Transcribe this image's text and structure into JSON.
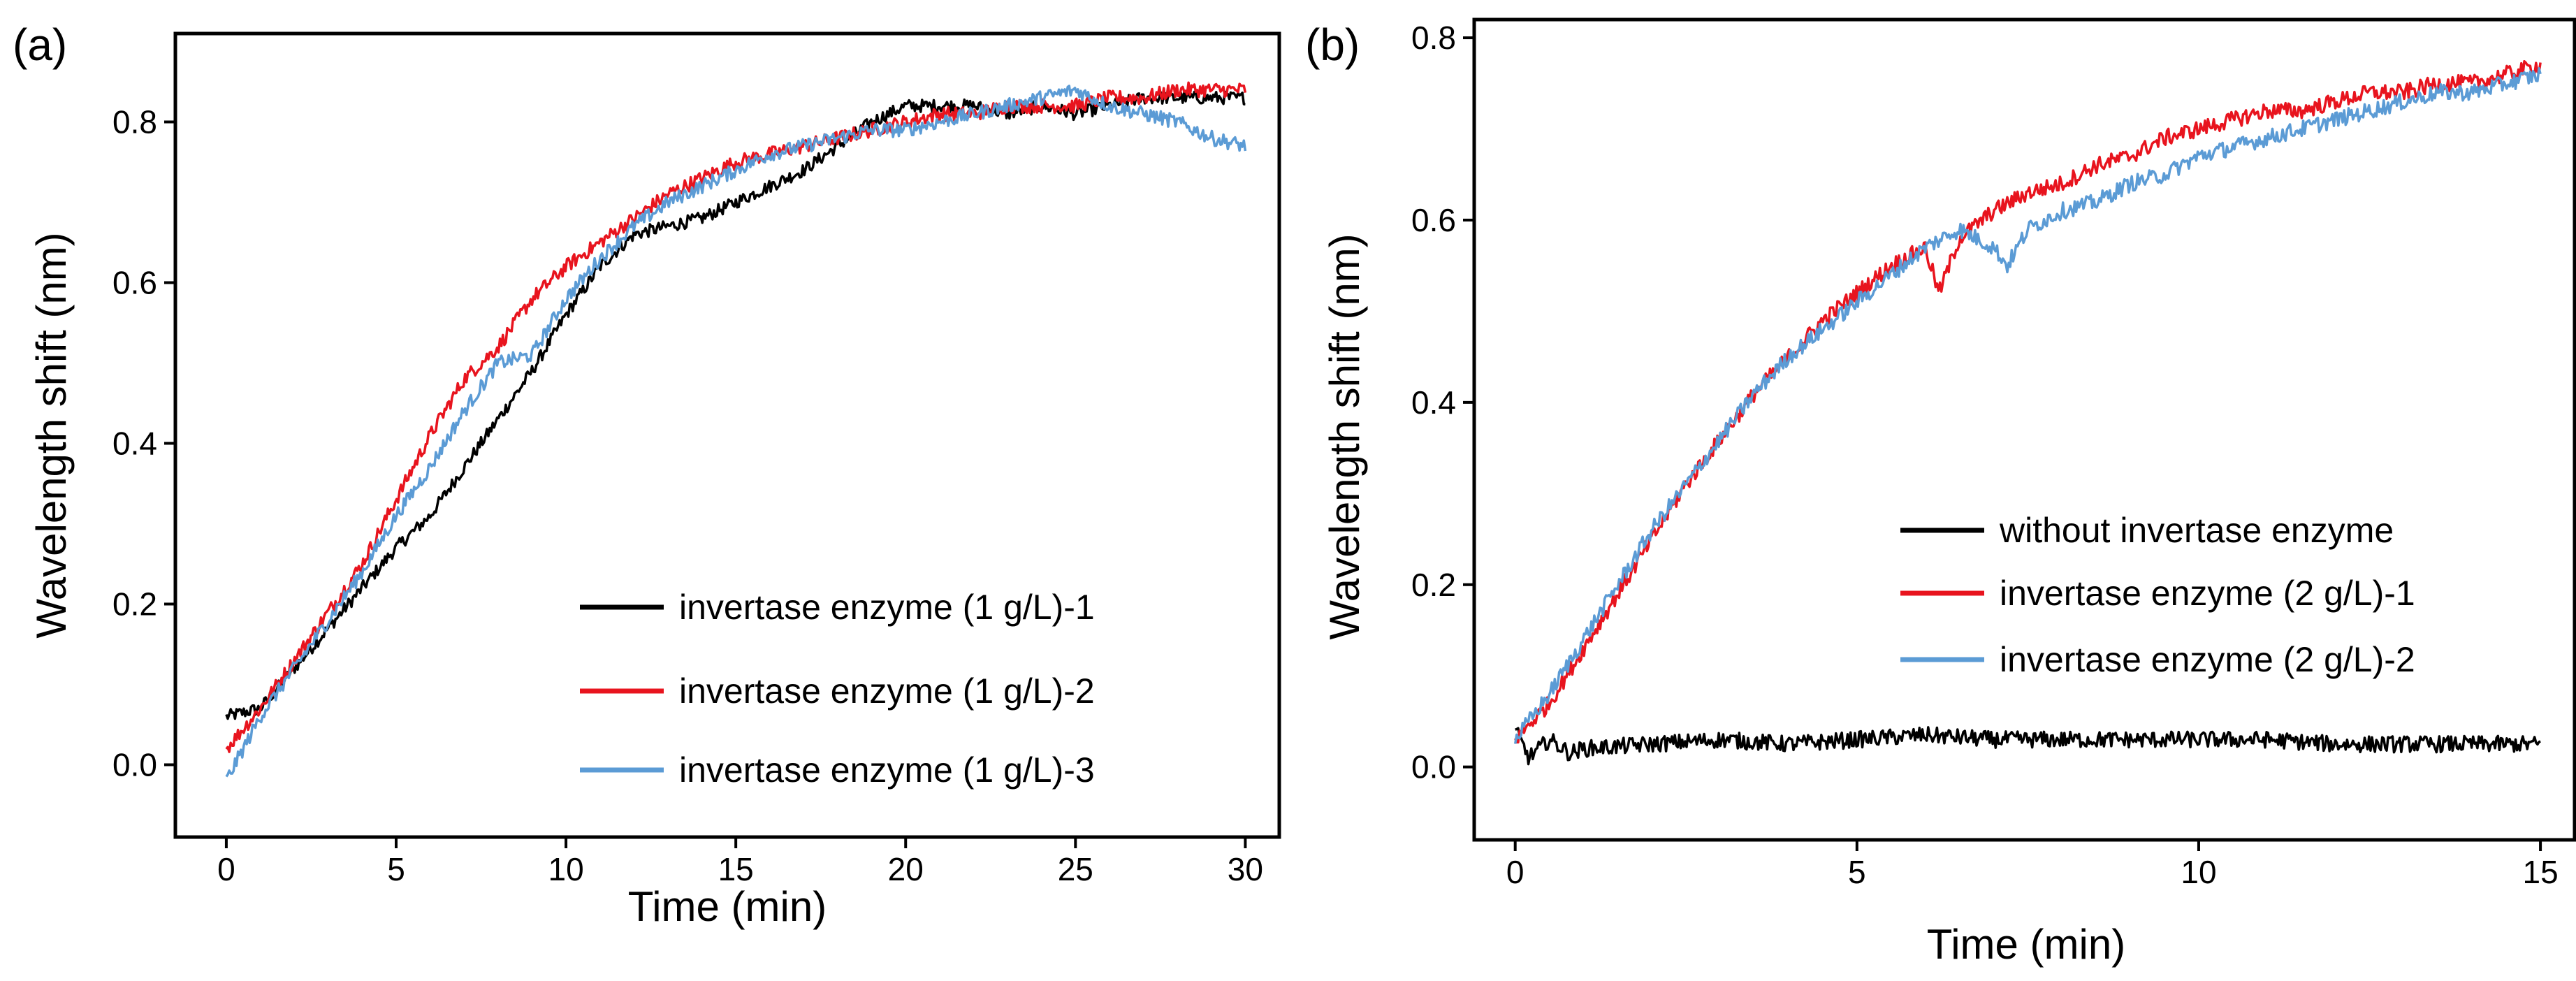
{
  "chart_data": [
    {
      "type": "line",
      "panel_label": "(a)",
      "xlabel": "Time (min)",
      "ylabel": "Wavelength shift (nm)",
      "xlim": [
        -1.5,
        31
      ],
      "ylim": [
        -0.09,
        0.91
      ],
      "xticks": [
        0,
        5,
        10,
        15,
        20,
        25,
        30
      ],
      "xtick_labels": [
        "0",
        "5",
        "10",
        "15",
        "20",
        "25",
        "30"
      ],
      "yticks": [
        0.0,
        0.2,
        0.4,
        0.6,
        0.8
      ],
      "ytick_labels": [
        "0.0",
        "0.2",
        "0.4",
        "0.6",
        "0.8"
      ],
      "grid": false,
      "legend_position": "lower-right",
      "series": [
        {
          "name": "invertase enzyme (1 g/L)-1",
          "color": "#000000",
          "noise": 0.008,
          "x": [
            0,
            1,
            2,
            3,
            4,
            5,
            6,
            7,
            8,
            9,
            10,
            11,
            12,
            13,
            14,
            15,
            16,
            17,
            18,
            19,
            20,
            21,
            22,
            23,
            24,
            25,
            26,
            27,
            28,
            29,
            30
          ],
          "y": [
            0.06,
            0.07,
            0.12,
            0.17,
            0.22,
            0.27,
            0.31,
            0.37,
            0.43,
            0.49,
            0.56,
            0.62,
            0.66,
            0.67,
            0.68,
            0.7,
            0.72,
            0.74,
            0.77,
            0.8,
            0.82,
            0.82,
            0.82,
            0.81,
            0.82,
            0.81,
            0.82,
            0.83,
            0.83,
            0.83,
            0.83
          ]
        },
        {
          "name": "invertase enzyme (1 g/L)-2",
          "color": "#e8141e",
          "noise": 0.009,
          "x": [
            0,
            1,
            2,
            3,
            4,
            5,
            6,
            7,
            8,
            9,
            10,
            11,
            12,
            13,
            14,
            15,
            16,
            17,
            18,
            19,
            20,
            21,
            22,
            23,
            24,
            25,
            26,
            27,
            28,
            29,
            30
          ],
          "y": [
            0.02,
            0.07,
            0.13,
            0.19,
            0.25,
            0.33,
            0.41,
            0.48,
            0.52,
            0.58,
            0.62,
            0.65,
            0.68,
            0.71,
            0.73,
            0.75,
            0.76,
            0.77,
            0.78,
            0.79,
            0.8,
            0.81,
            0.81,
            0.82,
            0.82,
            0.82,
            0.83,
            0.83,
            0.84,
            0.84,
            0.84
          ]
        },
        {
          "name": "invertase enzyme (1 g/L)-3",
          "color": "#5b9bd5",
          "noise": 0.009,
          "x": [
            0,
            1,
            2,
            3,
            4,
            5,
            6,
            7,
            8,
            9,
            10,
            11,
            12,
            13,
            14,
            15,
            16,
            17,
            18,
            19,
            20,
            21,
            22,
            23,
            24,
            25,
            26,
            27,
            28,
            29,
            30
          ],
          "y": [
            -0.02,
            0.06,
            0.12,
            0.18,
            0.24,
            0.31,
            0.37,
            0.44,
            0.5,
            0.51,
            0.58,
            0.63,
            0.67,
            0.7,
            0.72,
            0.74,
            0.76,
            0.77,
            0.78,
            0.79,
            0.79,
            0.8,
            0.81,
            0.82,
            0.83,
            0.84,
            0.82,
            0.81,
            0.8,
            0.78,
            0.77
          ]
        }
      ]
    },
    {
      "type": "line",
      "panel_label": "(b)",
      "xlabel": "Time (min)",
      "ylabel": "Wavelength shift (nm)",
      "xlim": [
        -0.6,
        15.5
      ],
      "ylim": [
        -0.08,
        0.82
      ],
      "xticks": [
        0,
        5,
        10,
        15
      ],
      "xtick_labels": [
        "0",
        "5",
        "10",
        "15"
      ],
      "yticks": [
        0.0,
        0.2,
        0.4,
        0.6,
        0.8
      ],
      "ytick_labels": [
        "0.0",
        "0.2",
        "0.4",
        "0.6",
        "0.8"
      ],
      "grid": false,
      "legend_position": "center-right",
      "series": [
        {
          "name": "without invertase enzyme",
          "color": "#000000",
          "noise": 0.009,
          "x": [
            0,
            0.2,
            0.5,
            0.8,
            1,
            2,
            3,
            4,
            5,
            6,
            7,
            8,
            9,
            10,
            11,
            12,
            13,
            14,
            15
          ],
          "y": [
            0.04,
            0.01,
            0.03,
            0.015,
            0.02,
            0.025,
            0.03,
            0.025,
            0.03,
            0.035,
            0.03,
            0.03,
            0.03,
            0.03,
            0.03,
            0.025,
            0.025,
            0.025,
            0.025
          ]
        },
        {
          "name": "invertase enzyme (2 g/L)-1",
          "color": "#e8141e",
          "noise": 0.009,
          "x": [
            0,
            0.5,
            1,
            1.5,
            2,
            2.5,
            3,
            3.5,
            4,
            4.5,
            5,
            5.5,
            6,
            6.2,
            6.5,
            7,
            7.5,
            8,
            8.5,
            9,
            9.5,
            10,
            10.5,
            11,
            11.5,
            12,
            12.5,
            13,
            13.5,
            14,
            14.5,
            15
          ],
          "y": [
            0.03,
            0.07,
            0.13,
            0.19,
            0.25,
            0.31,
            0.36,
            0.41,
            0.45,
            0.49,
            0.52,
            0.55,
            0.57,
            0.52,
            0.58,
            0.61,
            0.63,
            0.64,
            0.66,
            0.67,
            0.69,
            0.7,
            0.71,
            0.72,
            0.72,
            0.73,
            0.74,
            0.74,
            0.75,
            0.75,
            0.76,
            0.77
          ]
        },
        {
          "name": "invertase enzyme (2 g/L)-2",
          "color": "#5b9bd5",
          "noise": 0.009,
          "x": [
            0,
            0.5,
            1,
            1.5,
            2,
            2.5,
            3,
            3.5,
            4,
            4.5,
            5,
            5.5,
            6,
            6.5,
            7,
            7.2,
            7.5,
            8,
            8.5,
            9,
            9.5,
            10,
            10.5,
            11,
            11.5,
            12,
            12.5,
            13,
            13.5,
            14,
            14.5,
            15
          ],
          "y": [
            0.03,
            0.08,
            0.14,
            0.2,
            0.26,
            0.31,
            0.36,
            0.41,
            0.45,
            0.48,
            0.51,
            0.54,
            0.57,
            0.59,
            0.57,
            0.55,
            0.59,
            0.61,
            0.62,
            0.64,
            0.65,
            0.67,
            0.68,
            0.69,
            0.7,
            0.71,
            0.72,
            0.73,
            0.74,
            0.74,
            0.75,
            0.76
          ]
        }
      ]
    }
  ]
}
